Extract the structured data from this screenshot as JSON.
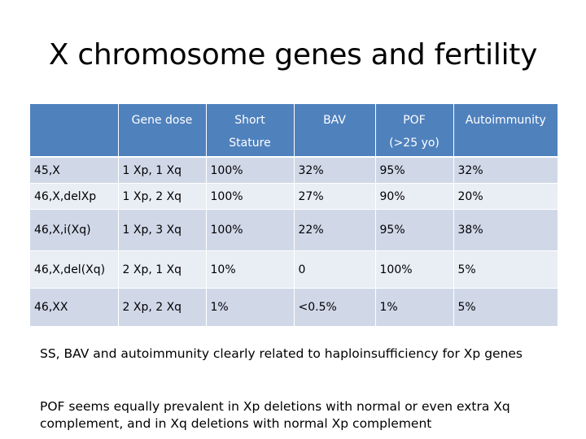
{
  "slide": {
    "title": "X chromosome genes and fertility"
  },
  "table": {
    "headers": [
      {
        "lines": [
          "",
          ""
        ]
      },
      {
        "lines": [
          "Gene dose",
          ""
        ]
      },
      {
        "lines": [
          "Short",
          "Stature"
        ]
      },
      {
        "lines": [
          "BAV",
          ""
        ]
      },
      {
        "lines": [
          "POF",
          "(>25 yo)"
        ]
      },
      {
        "lines": [
          "Autoimmunity",
          ""
        ]
      }
    ],
    "rows": [
      [
        "45,X",
        "1 Xp, 1 Xq",
        "100%",
        "32%",
        "95%",
        "32%"
      ],
      [
        "46,X,delXp",
        "1 Xp, 2 Xq",
        "100%",
        "27%",
        "90%",
        "20%"
      ],
      [
        "46,X,i(Xq)",
        "1 Xp, 3 Xq",
        "100%",
        "22%",
        "95%",
        "38%"
      ],
      [
        "46,X,del(Xq)",
        "2 Xp, 1 Xq",
        "10%",
        "0",
        "100%",
        "5%"
      ],
      [
        "46,XX",
        "2 Xp, 2 Xq",
        "1%",
        "<0.5%",
        "1%",
        "5%"
      ]
    ]
  },
  "notes": [
    "SS, BAV and autoimmunity clearly related to haploinsufficiency for Xp genes",
    "POF seems equally prevalent in Xp deletions with normal or even extra Xq complement, and in Xq deletions with normal Xp complement"
  ],
  "colors": {
    "header_bg": "#4f81bd",
    "row_odd_bg": "#d0d8e8",
    "row_even_bg": "#e9edf4"
  }
}
